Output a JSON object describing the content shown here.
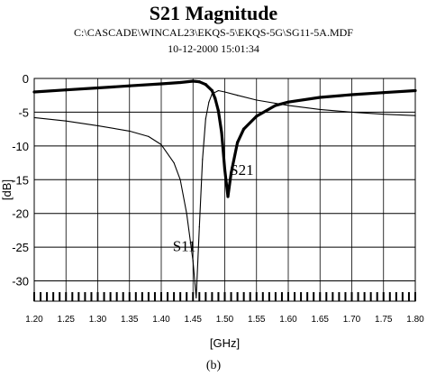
{
  "chart_data": {
    "type": "line",
    "title": "S21 Magnitude",
    "subtitle": "C:\\CASCADE\\WINCAL23\\EKQS-5\\EKQS-5G\\SG11-5A.MDF",
    "date_line": "10-12-2000 15:01:34",
    "xlabel": "[GHz]",
    "ylabel": "[dB]",
    "caption": "(b)",
    "xlim": [
      1.2,
      1.8
    ],
    "ylim": [
      -33,
      0
    ],
    "x_ticks": [
      "1.20",
      "1.25",
      "1.30",
      "1.35",
      "1.40",
      "1.45",
      "1.50",
      "1.55",
      "1.60",
      "1.65",
      "1.70",
      "1.75",
      "1.80"
    ],
    "y_ticks": [
      "0",
      "-5",
      "-10",
      "-15",
      "-20",
      "-25",
      "-30"
    ],
    "grid": true,
    "annotations": [
      {
        "text": "S21",
        "x": 1.508,
        "y": -14.3
      },
      {
        "text": "S11",
        "x": 1.418,
        "y": -25.6
      }
    ],
    "series": [
      {
        "name": "S21",
        "x": [
          1.2,
          1.25,
          1.3,
          1.35,
          1.4,
          1.43,
          1.45,
          1.46,
          1.47,
          1.48,
          1.485,
          1.49,
          1.495,
          1.5,
          1.505,
          1.51,
          1.52,
          1.53,
          1.55,
          1.58,
          1.6,
          1.65,
          1.7,
          1.75,
          1.8
        ],
        "y": [
          -2.0,
          -1.7,
          -1.4,
          -1.1,
          -0.8,
          -0.6,
          -0.4,
          -0.5,
          -0.9,
          -1.8,
          -3.0,
          -4.8,
          -8.0,
          -13.5,
          -17.5,
          -14.0,
          -9.5,
          -7.5,
          -5.6,
          -4.0,
          -3.5,
          -2.8,
          -2.4,
          -2.1,
          -1.8
        ]
      },
      {
        "name": "S11",
        "x": [
          1.2,
          1.25,
          1.3,
          1.35,
          1.38,
          1.4,
          1.42,
          1.43,
          1.44,
          1.45,
          1.455,
          1.46,
          1.465,
          1.47,
          1.475,
          1.48,
          1.49,
          1.5,
          1.52,
          1.55,
          1.6,
          1.65,
          1.7,
          1.75,
          1.8
        ],
        "y": [
          -5.8,
          -6.3,
          -7.0,
          -7.8,
          -8.6,
          -9.8,
          -12.5,
          -15.0,
          -20.0,
          -27.0,
          -32.5,
          -22.0,
          -12.0,
          -6.0,
          -3.5,
          -2.3,
          -1.8,
          -2.0,
          -2.5,
          -3.2,
          -4.0,
          -4.6,
          -5.0,
          -5.3,
          -5.5
        ]
      }
    ]
  }
}
